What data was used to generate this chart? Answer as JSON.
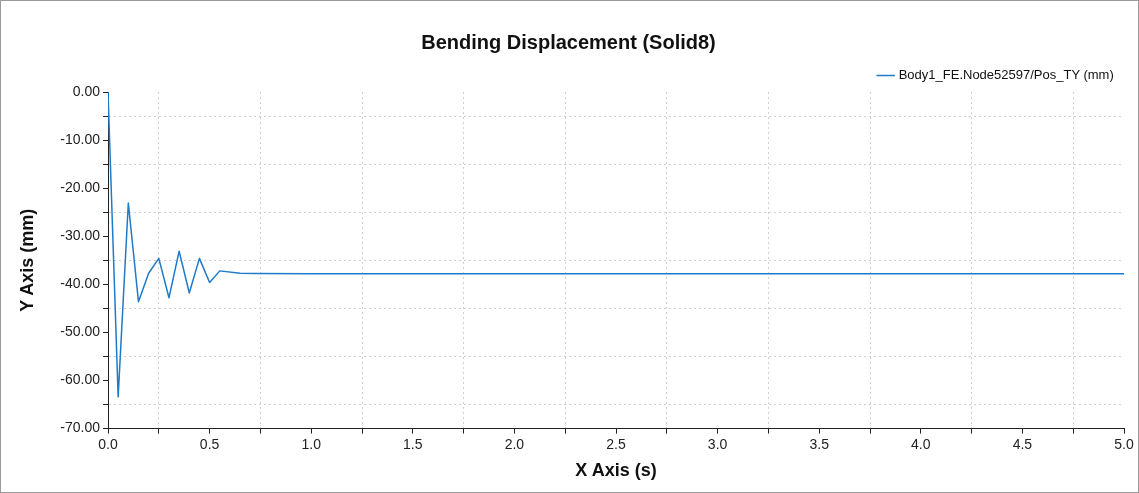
{
  "chart_data": {
    "type": "line",
    "title": "Bending Displacement (Solid8)",
    "xlabel": "X Axis (s)",
    "ylabel": "Y Axis (mm)",
    "xlim": [
      0,
      5
    ],
    "ylim": [
      -70,
      0
    ],
    "xticks": [
      {
        "value": 0,
        "label": "0.0"
      },
      {
        "value": 0.25,
        "label": null
      },
      {
        "value": 0.5,
        "label": "0.5"
      },
      {
        "value": 0.75,
        "label": null
      },
      {
        "value": 1,
        "label": "1.0"
      },
      {
        "value": 1.25,
        "label": null
      },
      {
        "value": 1.5,
        "label": "1.5"
      },
      {
        "value": 1.75,
        "label": null
      },
      {
        "value": 2,
        "label": "2.0"
      },
      {
        "value": 2.25,
        "label": null
      },
      {
        "value": 2.5,
        "label": "2.5"
      },
      {
        "value": 2.75,
        "label": null
      },
      {
        "value": 3,
        "label": "3.0"
      },
      {
        "value": 3.25,
        "label": null
      },
      {
        "value": 3.5,
        "label": "3.5"
      },
      {
        "value": 3.75,
        "label": null
      },
      {
        "value": 4,
        "label": "4.0"
      },
      {
        "value": 4.25,
        "label": null
      },
      {
        "value": 4.5,
        "label": "4.5"
      },
      {
        "value": 4.75,
        "label": null
      },
      {
        "value": 5,
        "label": "5.0"
      }
    ],
    "yticks": [
      {
        "value": 0,
        "label": "0.00"
      },
      {
        "value": -5,
        "label": null
      },
      {
        "value": -10,
        "label": "-10.00"
      },
      {
        "value": -15,
        "label": null
      },
      {
        "value": -20,
        "label": "-20.00"
      },
      {
        "value": -25,
        "label": null
      },
      {
        "value": -30,
        "label": "-30.00"
      },
      {
        "value": -35,
        "label": null
      },
      {
        "value": -40,
        "label": "-40.00"
      },
      {
        "value": -45,
        "label": null
      },
      {
        "value": -50,
        "label": "-50.00"
      },
      {
        "value": -55,
        "label": null
      },
      {
        "value": -60,
        "label": "-60.00"
      },
      {
        "value": -65,
        "label": null
      },
      {
        "value": -70,
        "label": "-70.00"
      }
    ],
    "grid": true,
    "legend": "top right",
    "marker": "none",
    "line_style": "solid",
    "series": [
      {
        "name": "Body1_FE.Node52597/Pos_TY (mm)",
        "color": "#1f7ac8",
        "x": [
          0,
          0.05,
          0.1,
          0.15,
          0.2,
          0.25,
          0.3,
          0.35,
          0.4,
          0.45,
          0.5,
          0.55,
          0.65,
          1,
          2,
          3,
          4,
          5
        ],
        "values": [
          0,
          -63.4,
          -23.1,
          -43.6,
          -37.7,
          -34.6,
          -42.8,
          -33.1,
          -41.8,
          -34.6,
          -39.6,
          -37.2,
          -37.7,
          -37.8,
          -37.8,
          -37.8,
          -37.8,
          -37.8
        ]
      }
    ]
  }
}
